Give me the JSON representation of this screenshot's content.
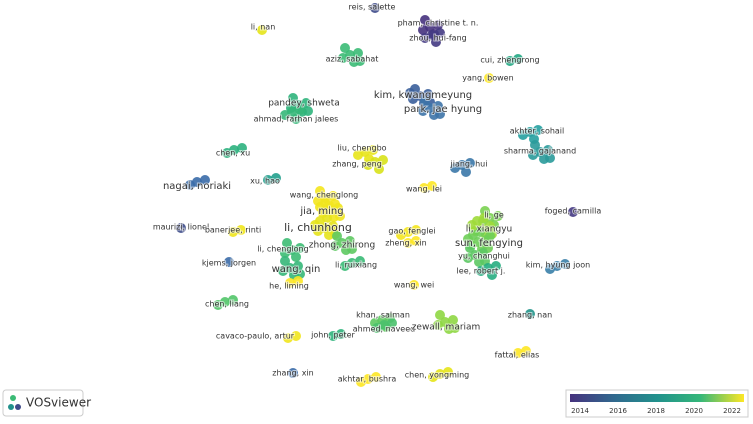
{
  "nodes": [
    {
      "label": "reis, salette",
      "color": "#3e4a89"
    },
    {
      "label": "li, nan",
      "color": "#e5e419"
    },
    {
      "label": "pham, christine t. n.",
      "color": "#46327e"
    },
    {
      "label": "zhou, hui-fang",
      "color": "#443a83"
    },
    {
      "label": "aziz, sabahat",
      "color": "#3bbb75"
    },
    {
      "label": "cui, zhengrong",
      "color": "#22a884"
    },
    {
      "label": "yang, bowen",
      "color": "#fde725"
    },
    {
      "label": "kim, kwangmeyung",
      "color": "#3b5f9b"
    },
    {
      "label": "park, jae hyung",
      "color": "#3e74a8"
    },
    {
      "label": "pandey, shweta",
      "color": "#2fb47c"
    },
    {
      "label": "ahmad, farhan jalees",
      "color": "#35b779"
    },
    {
      "label": "akhter, sohail",
      "color": "#25a0a0"
    },
    {
      "label": "sharma, gajanand",
      "color": "#2a9a9a"
    },
    {
      "label": "chen, xu",
      "color": "#2cb17e"
    },
    {
      "label": "liu, chengbo",
      "color": "#e8e419"
    },
    {
      "label": "zhang, peng",
      "color": "#d8e219"
    },
    {
      "label": "jiang, hui",
      "color": "#3b78a8"
    },
    {
      "label": "xu, hao",
      "color": "#22a08d"
    },
    {
      "label": "nagai, noriaki",
      "color": "#3a6ba8"
    },
    {
      "label": "wang, lei",
      "color": "#fde725"
    },
    {
      "label": "wang, chenglong",
      "color": "#f4e61e"
    },
    {
      "label": "jia, ming",
      "color": "#f1e51d"
    },
    {
      "label": "li, ge",
      "color": "#7ad151"
    },
    {
      "label": "foged, camilla",
      "color": "#443983"
    },
    {
      "label": "li, chunhong",
      "color": "#e6e31b"
    },
    {
      "label": "li, xiangyu",
      "color": "#9fda3a"
    },
    {
      "label": "maurizi, lionel",
      "color": "#3e4c8a"
    },
    {
      "label": "banerjee, rinti",
      "color": "#f0e51c"
    },
    {
      "label": "gao, fenglei",
      "color": "#f4e61e"
    },
    {
      "label": "sun, fengying",
      "color": "#6ece58"
    },
    {
      "label": "zheng, xin",
      "color": "#fde725"
    },
    {
      "label": "zhong, zhirong",
      "color": "#5ec962"
    },
    {
      "label": "li, chenglong",
      "color": "#3dbc74"
    },
    {
      "label": "yu, changhui",
      "color": "#5cc863"
    },
    {
      "label": "kjems, jorgen",
      "color": "#3b6ba8"
    },
    {
      "label": "li, ruixiang",
      "color": "#3aba76"
    },
    {
      "label": "kim, hyung joon",
      "color": "#3a7fa8"
    },
    {
      "label": "wang, qin",
      "color": "#35b779"
    },
    {
      "label": "lee, robert j.",
      "color": "#27ad81"
    },
    {
      "label": "he, liming",
      "color": "#fde725"
    },
    {
      "label": "wang, wei",
      "color": "#fde725"
    },
    {
      "label": "chen, liang",
      "color": "#52c569"
    },
    {
      "label": "khan, salman",
      "color": "#5ec962"
    },
    {
      "label": "zhang, nan",
      "color": "#22958b"
    },
    {
      "label": "ahmed, naveed",
      "color": "#4ac16d"
    },
    {
      "label": "zewall, mariam",
      "color": "#8fd744"
    },
    {
      "label": "cavaco-paulo, artur",
      "color": "#f1e51d"
    },
    {
      "label": "john, peter",
      "color": "#2fb47c"
    },
    {
      "label": "fattal, elias",
      "color": "#fde725"
    },
    {
      "label": "zhang, xin",
      "color": "#3b6ba8"
    },
    {
      "label": "chen, yongming",
      "color": "#e5e419"
    },
    {
      "label": "akhtar, bushra",
      "color": "#fde725"
    }
  ],
  "legend": {
    "ticks": [
      "2014",
      "2016",
      "2018",
      "2020",
      "2022"
    ],
    "colors": [
      "#46327e",
      "#31688e",
      "#21918c",
      "#35b779",
      "#fde725"
    ]
  },
  "brand": "VOSviewer"
}
